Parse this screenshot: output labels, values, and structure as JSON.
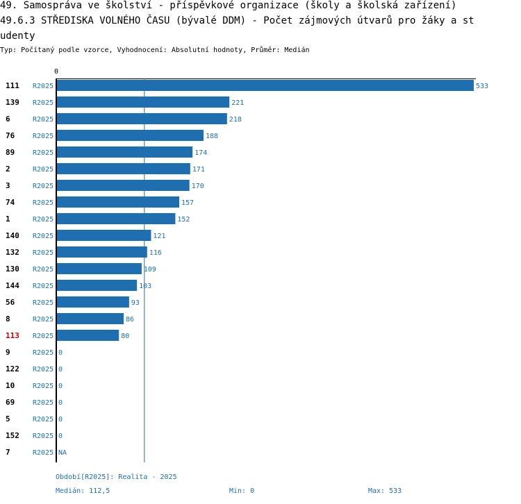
{
  "title": {
    "line1": "49. Samospráva ve školství - příspěvkové organizace (školy a školská zařízení)",
    "line2": "49.6.3 STŘEDISKA VOLNÉHO ČASU (bývalé DDM) - Počet zájmových útvarů pro žáky a st",
    "line3": "udenty"
  },
  "subtitle": "Typ: Počítaný podle vzorce, Vyhodnocení: Absolutní hodnoty, Průměr: Medián",
  "colors": {
    "bar": "#1f6fb0",
    "label": "#1f6fb0",
    "highlight": "#cc0000",
    "axis": "#000000",
    "median_line": "#1f6fb0"
  },
  "chart_data": {
    "type": "bar",
    "orientation": "horizontal",
    "axis_zero_label": "0",
    "xlim": [
      0,
      533
    ],
    "median": 112.5,
    "series_label": "R2025",
    "rows": [
      {
        "id": "111",
        "period": "R2025",
        "value": 533,
        "label": "533",
        "highlight": false
      },
      {
        "id": "139",
        "period": "R2025",
        "value": 221,
        "label": "221",
        "highlight": false
      },
      {
        "id": "6",
        "period": "R2025",
        "value": 218,
        "label": "218",
        "highlight": false
      },
      {
        "id": "76",
        "period": "R2025",
        "value": 188,
        "label": "188",
        "highlight": false
      },
      {
        "id": "89",
        "period": "R2025",
        "value": 174,
        "label": "174",
        "highlight": false
      },
      {
        "id": "2",
        "period": "R2025",
        "value": 171,
        "label": "171",
        "highlight": false
      },
      {
        "id": "3",
        "period": "R2025",
        "value": 170,
        "label": "170",
        "highlight": false
      },
      {
        "id": "74",
        "period": "R2025",
        "value": 157,
        "label": "157",
        "highlight": false
      },
      {
        "id": "1",
        "period": "R2025",
        "value": 152,
        "label": "152",
        "highlight": false
      },
      {
        "id": "140",
        "period": "R2025",
        "value": 121,
        "label": "121",
        "highlight": false
      },
      {
        "id": "132",
        "period": "R2025",
        "value": 116,
        "label": "116",
        "highlight": false
      },
      {
        "id": "130",
        "period": "R2025",
        "value": 109,
        "label": "109",
        "highlight": false
      },
      {
        "id": "144",
        "period": "R2025",
        "value": 103,
        "label": "103",
        "highlight": false
      },
      {
        "id": "56",
        "period": "R2025",
        "value": 93,
        "label": "93",
        "highlight": false
      },
      {
        "id": "8",
        "period": "R2025",
        "value": 86,
        "label": "86",
        "highlight": false
      },
      {
        "id": "113",
        "period": "R2025",
        "value": 80,
        "label": "80",
        "highlight": true
      },
      {
        "id": "9",
        "period": "R2025",
        "value": 0,
        "label": "0",
        "highlight": false
      },
      {
        "id": "122",
        "period": "R2025",
        "value": 0,
        "label": "0",
        "highlight": false
      },
      {
        "id": "10",
        "period": "R2025",
        "value": 0,
        "label": "0",
        "highlight": false
      },
      {
        "id": "69",
        "period": "R2025",
        "value": 0,
        "label": "0",
        "highlight": false
      },
      {
        "id": "5",
        "period": "R2025",
        "value": 0,
        "label": "0",
        "highlight": false
      },
      {
        "id": "152",
        "period": "R2025",
        "value": 0,
        "label": "0",
        "highlight": false
      },
      {
        "id": "7",
        "period": "R2025",
        "value": null,
        "label": "NA",
        "highlight": false
      }
    ]
  },
  "footer": {
    "period": "Období[R2025]: Realita - 2025",
    "median": "Medián: 112,5",
    "min": "Min: 0",
    "max": "Max: 533"
  }
}
